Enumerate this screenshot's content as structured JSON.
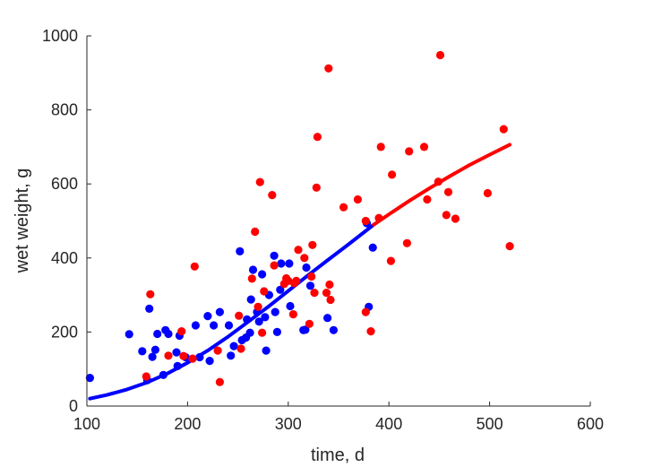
{
  "chart_data": {
    "type": "scatter",
    "title": "",
    "xlabel": "time, d",
    "ylabel": "wet weight, g",
    "xlim": [
      100,
      600
    ],
    "ylim": [
      0,
      1000
    ],
    "xticks": [
      100,
      200,
      300,
      400,
      500,
      600
    ],
    "yticks": [
      0,
      200,
      400,
      600,
      800,
      1000
    ],
    "grid": false,
    "colors": {
      "blue": "#0000ff",
      "red": "#ff0000",
      "axis": "#262626"
    },
    "series": [
      {
        "color": "#0000ff",
        "marker": "dot",
        "points": [
          [
            103,
            76
          ],
          [
            142,
            194
          ],
          [
            155,
            148
          ],
          [
            160,
            70
          ],
          [
            162,
            263
          ],
          [
            165,
            133
          ],
          [
            168,
            152
          ],
          [
            170,
            195
          ],
          [
            176,
            84
          ],
          [
            178,
            205
          ],
          [
            181,
            195
          ],
          [
            189,
            145
          ],
          [
            190,
            108
          ],
          [
            192,
            190
          ],
          [
            198,
            132
          ],
          [
            208,
            218
          ],
          [
            212,
            132
          ],
          [
            220,
            243
          ],
          [
            222,
            122
          ],
          [
            226,
            218
          ],
          [
            232,
            254
          ],
          [
            241,
            218
          ],
          [
            243,
            136
          ],
          [
            246,
            162
          ],
          [
            252,
            418
          ],
          [
            254,
            178
          ],
          [
            258,
            185
          ],
          [
            259,
            234
          ],
          [
            262,
            198
          ],
          [
            263,
            288
          ],
          [
            265,
            368
          ],
          [
            269,
            254
          ],
          [
            271,
            228
          ],
          [
            274,
            356
          ],
          [
            277,
            240
          ],
          [
            278,
            150
          ],
          [
            281,
            300
          ],
          [
            286,
            406
          ],
          [
            287,
            254
          ],
          [
            289,
            200
          ],
          [
            292,
            314
          ],
          [
            293,
            385
          ],
          [
            301,
            385
          ],
          [
            302,
            270
          ],
          [
            315,
            205
          ],
          [
            317,
            206
          ],
          [
            318,
            374
          ],
          [
            322,
            325
          ],
          [
            339,
            238
          ],
          [
            345,
            205
          ],
          [
            378,
            494
          ],
          [
            380,
            268
          ],
          [
            384,
            428
          ]
        ]
      },
      {
        "color": "#ff0000",
        "marker": "dot",
        "points": [
          [
            159,
            80
          ],
          [
            163,
            302
          ],
          [
            181,
            136
          ],
          [
            194,
            202
          ],
          [
            196,
            135
          ],
          [
            205,
            128
          ],
          [
            207,
            377
          ],
          [
            230,
            150
          ],
          [
            232,
            65
          ],
          [
            251,
            244
          ],
          [
            253,
            155
          ],
          [
            264,
            344
          ],
          [
            267,
            471
          ],
          [
            270,
            268
          ],
          [
            272,
            605
          ],
          [
            274,
            198
          ],
          [
            276,
            310
          ],
          [
            284,
            570
          ],
          [
            286,
            380
          ],
          [
            296,
            330
          ],
          [
            298,
            345
          ],
          [
            300,
            338
          ],
          [
            305,
            248
          ],
          [
            306,
            332
          ],
          [
            308,
            338
          ],
          [
            310,
            422
          ],
          [
            316,
            400
          ],
          [
            321,
            222
          ],
          [
            323,
            350
          ],
          [
            324,
            435
          ],
          [
            326,
            306
          ],
          [
            328,
            590
          ],
          [
            329,
            727
          ],
          [
            338,
            306
          ],
          [
            340,
            912
          ],
          [
            341,
            328
          ],
          [
            342,
            287
          ],
          [
            355,
            537
          ],
          [
            369,
            558
          ],
          [
            377,
            254
          ],
          [
            377,
            500
          ],
          [
            382,
            202
          ],
          [
            390,
            508
          ],
          [
            392,
            700
          ],
          [
            402,
            392
          ],
          [
            403,
            625
          ],
          [
            418,
            440
          ],
          [
            420,
            688
          ],
          [
            435,
            700
          ],
          [
            438,
            558
          ],
          [
            449,
            606
          ],
          [
            451,
            948
          ],
          [
            457,
            516
          ],
          [
            459,
            578
          ],
          [
            466,
            506
          ],
          [
            498,
            575
          ],
          [
            514,
            748
          ],
          [
            520,
            432
          ]
        ]
      },
      {
        "color": "#0000ff",
        "marker": "line",
        "points": [
          [
            103,
            20
          ],
          [
            120,
            30
          ],
          [
            140,
            45
          ],
          [
            160,
            64
          ],
          [
            180,
            88
          ],
          [
            200,
            117
          ],
          [
            220,
            150
          ],
          [
            240,
            187
          ],
          [
            260,
            227
          ],
          [
            280,
            268
          ],
          [
            300,
            311
          ],
          [
            320,
            354
          ],
          [
            340,
            396
          ],
          [
            360,
            437
          ],
          [
            385,
            490
          ]
        ]
      },
      {
        "color": "#ff0000",
        "marker": "line",
        "points": [
          [
            385,
            490
          ],
          [
            400,
            518
          ],
          [
            420,
            554
          ],
          [
            440,
            588
          ],
          [
            460,
            620
          ],
          [
            480,
            651
          ],
          [
            500,
            679
          ],
          [
            520,
            706
          ]
        ]
      }
    ]
  }
}
